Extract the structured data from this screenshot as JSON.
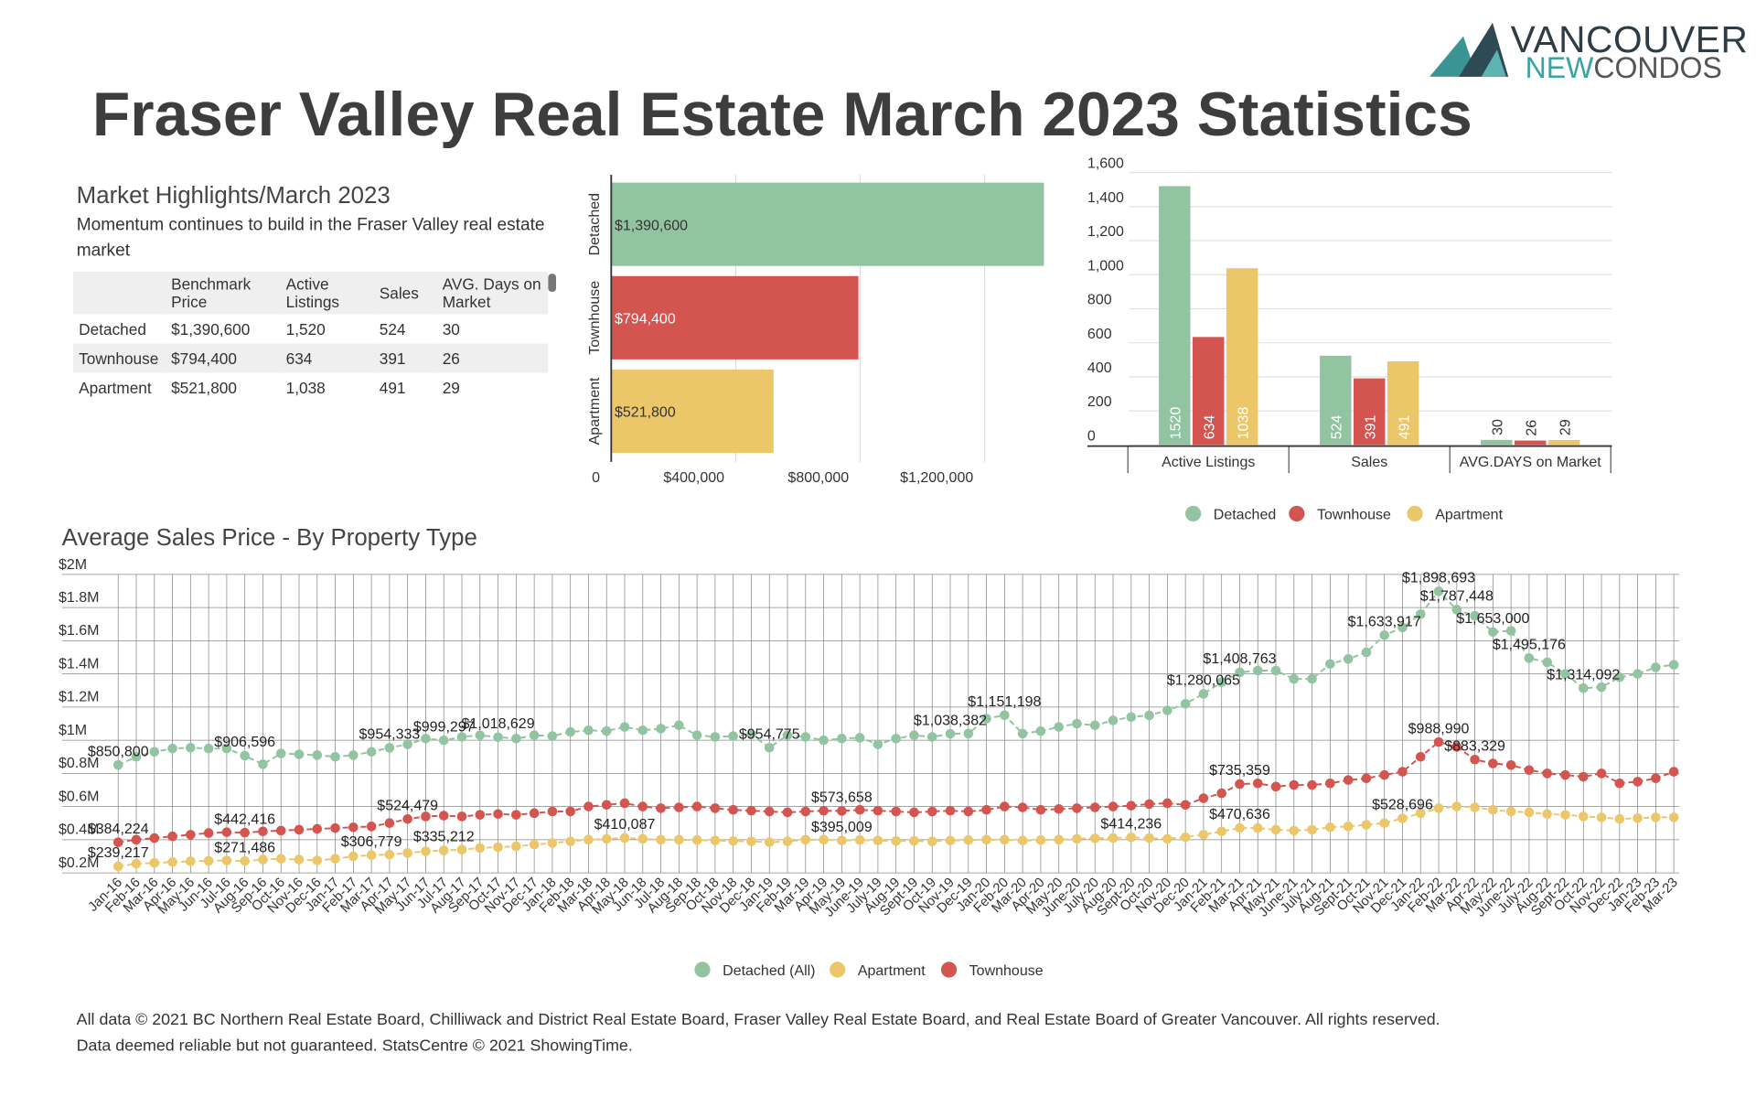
{
  "header": {
    "title": "Fraser Valley Real Estate March 2023 Statistics"
  },
  "logo": {
    "top": "VANCOUVER",
    "new": "NEW",
    "condos": "CONDOS"
  },
  "highlights": {
    "title": "Market Highlights/March 2023",
    "subtitle": "Momentum continues to build in the Fraser Valley real estate market",
    "table": {
      "columns": [
        "Benchmark Price",
        "Active Listings",
        "Sales",
        "AVG. Days on Market"
      ],
      "rows": [
        [
          "Detached",
          "$1,390,600",
          "1,520",
          "524",
          "30"
        ],
        [
          "Townhouse",
          "$794,400",
          "634",
          "391",
          "26"
        ],
        [
          "Apartment",
          "$521,800",
          "1,038",
          "491",
          "29"
        ]
      ]
    }
  },
  "chart_data": [
    {
      "type": "bar",
      "orientation": "horizontal",
      "categories": [
        "Detached",
        "Townhouse",
        "Apartment"
      ],
      "values": [
        1390600,
        794400,
        521800
      ],
      "value_labels": [
        "$1,390,600",
        "$794,400",
        "$521,800"
      ],
      "colors": [
        "#93c4a1",
        "#d4544f",
        "#ecc76a"
      ],
      "xlim": [
        0,
        1400000
      ],
      "xticks": [
        0,
        {
          "value": 400000,
          "label": "$400,000"
        },
        {
          "value": 800000,
          "label": "$800,000"
        },
        {
          "value": 1200000,
          "label": "$1,200,000"
        }
      ],
      "grid": true
    },
    {
      "type": "bar",
      "orientation": "vertical",
      "categories": [
        "Active Listings",
        "Sales",
        "AVG.DAYS on Market"
      ],
      "series": [
        {
          "name": "Detached",
          "color": "#93c4a1",
          "values": [
            1520,
            524,
            30
          ]
        },
        {
          "name": "Townhouse",
          "color": "#d4544f",
          "values": [
            634,
            391,
            26
          ]
        },
        {
          "name": "Apartment",
          "color": "#ecc76a",
          "values": [
            1038,
            491,
            29
          ]
        }
      ],
      "ylim": [
        0,
        1600
      ],
      "yticks": [
        0,
        200,
        400,
        600,
        800,
        {
          "value": 1000,
          "label": "1,000"
        },
        {
          "value": 1200,
          "label": "1,200"
        },
        {
          "value": 1400,
          "label": "1,400"
        },
        {
          "value": 1600,
          "label": "1,600"
        }
      ],
      "grid": true,
      "legend": "bottom"
    },
    {
      "type": "line",
      "title": "Average Sales Price - By Property Type",
      "categories": [
        "Jan-16",
        "Feb-16",
        "Mar-16",
        "Apr-16",
        "May-16",
        "Jun-16",
        "Jul-16",
        "Aug-16",
        "Sep-16",
        "Oct-16",
        "Nov-16",
        "Dec-16",
        "Jan-17",
        "Feb-17",
        "Mar-17",
        "Apr-17",
        "May-17",
        "Jun-17",
        "Jul-17",
        "Aug-17",
        "Sep-17",
        "Oct-17",
        "Nov-17",
        "Dec-17",
        "Jan-18",
        "Feb-18",
        "Mar-18",
        "Apr-18",
        "May-18",
        "Jun-18",
        "Jul-18",
        "Aug-18",
        "Sep-18",
        "Oct-18",
        "Nov-18",
        "Dec-18",
        "Jan-19",
        "Feb-19",
        "Mar-19",
        "Apr-19",
        "May-19",
        "June-19",
        "July-19",
        "Aug-19",
        "Sept-19",
        "Oct-19",
        "Nov-19",
        "Dec-19",
        "Jan-20",
        "Feb-20",
        "Mar-20",
        "Apr-20",
        "May-20",
        "June-20",
        "July-20",
        "Aug-20",
        "Sept-20",
        "Oct-20",
        "Nov-20",
        "Dec-20",
        "Jan-21",
        "Feb-21",
        "Mar-21",
        "Apr-21",
        "May-21",
        "June-21",
        "July-21",
        "Aug-21",
        "Sept-21",
        "Oct-21",
        "Nov-21",
        "Dec-21",
        "Jan-22",
        "Feb-22",
        "Mar-22",
        "Apr-22",
        "May-22",
        "June-22",
        "July-22",
        "Aug-22",
        "Sept-22",
        "Oct-22",
        "Nov-22",
        "Dec-22",
        "Jan-23",
        "Feb-23",
        "Mar-23"
      ],
      "series": [
        {
          "name": "Detached (All)",
          "color": "#93c4a1",
          "values": [
            850800,
            900000,
            930000,
            950000,
            955000,
            950000,
            950000,
            906596,
            855000,
            920000,
            915000,
            910000,
            900000,
            910000,
            930000,
            954333,
            975000,
            1010000,
            999297,
            1020000,
            1030000,
            1018629,
            1010000,
            1030000,
            1025000,
            1050000,
            1060000,
            1055000,
            1080000,
            1060000,
            1070000,
            1090000,
            1030000,
            1020000,
            1025000,
            1035000,
            954775,
            1030000,
            1020000,
            1000000,
            1010000,
            1015000,
            975000,
            1010000,
            1030000,
            1020000,
            1038382,
            1040000,
            1130000,
            1151198,
            1040000,
            1055000,
            1080000,
            1100000,
            1090000,
            1120000,
            1140000,
            1150000,
            1180000,
            1220000,
            1280065,
            1350000,
            1408763,
            1420000,
            1420000,
            1370000,
            1370000,
            1460000,
            1490000,
            1530000,
            1633917,
            1680000,
            1760000,
            1898693,
            1787448,
            1750000,
            1653000,
            1660000,
            1495176,
            1470000,
            1400000,
            1314092,
            1320000,
            1380000,
            1400000,
            1440000,
            1455000
          ],
          "value_labels": [
            "$850,800",
            null,
            null,
            null,
            null,
            null,
            null,
            "$906,596",
            null,
            null,
            null,
            null,
            null,
            null,
            null,
            "$954,333",
            null,
            null,
            "$999,297",
            null,
            null,
            "$1,018,629",
            null,
            null,
            null,
            null,
            null,
            null,
            null,
            null,
            null,
            null,
            null,
            null,
            null,
            null,
            "$954,775",
            null,
            null,
            null,
            null,
            null,
            null,
            null,
            null,
            null,
            "$1,038,382",
            null,
            null,
            "$1,151,198",
            null,
            null,
            null,
            null,
            null,
            null,
            null,
            null,
            null,
            null,
            "$1,280,065",
            null,
            "$1,408,763",
            null,
            null,
            null,
            null,
            null,
            null,
            null,
            "$1,633,917",
            null,
            null,
            "$1,898,693",
            "$1,787,448",
            null,
            "$1,653,000",
            null,
            "$1,495,176",
            null,
            null,
            "$1,314,092",
            null,
            null,
            null,
            null,
            null
          ]
        },
        {
          "name": "Apartment",
          "color": "#ecc76a",
          "values": [
            239217,
            255000,
            260000,
            265000,
            270000,
            272000,
            275000,
            271486,
            280000,
            285000,
            280000,
            275000,
            285000,
            300000,
            306779,
            310000,
            320000,
            330000,
            335212,
            340000,
            350000,
            355000,
            360000,
            370000,
            380000,
            390000,
            400000,
            405000,
            410087,
            405000,
            400000,
            400000,
            398000,
            395000,
            392000,
            390000,
            385000,
            390000,
            400000,
            400000,
            395009,
            398000,
            395000,
            392000,
            393000,
            390000,
            395000,
            398000,
            400000,
            400000,
            395000,
            398000,
            400000,
            405000,
            408000,
            410000,
            414236,
            410000,
            405000,
            415000,
            430000,
            450000,
            470636,
            470000,
            460000,
            455000,
            460000,
            475000,
            480000,
            490000,
            500000,
            528696,
            560000,
            590000,
            600000,
            595000,
            580000,
            570000,
            565000,
            555000,
            550000,
            540000,
            535000,
            525000,
            530000,
            535000,
            535000
          ],
          "value_labels": [
            "$239,217",
            null,
            null,
            null,
            null,
            null,
            null,
            "$271,486",
            null,
            null,
            null,
            null,
            null,
            null,
            "$306,779",
            null,
            null,
            null,
            "$335,212",
            null,
            null,
            null,
            null,
            null,
            null,
            null,
            null,
            null,
            "$410,087",
            null,
            null,
            null,
            null,
            null,
            null,
            null,
            null,
            null,
            null,
            null,
            "$395,009",
            null,
            null,
            null,
            null,
            null,
            null,
            null,
            null,
            null,
            null,
            null,
            null,
            null,
            null,
            null,
            "$414,236",
            null,
            null,
            null,
            null,
            null,
            "$470,636",
            null,
            null,
            null,
            null,
            null,
            null,
            null,
            null,
            "$528,696",
            null,
            null,
            null,
            null,
            null,
            null,
            null,
            null,
            null,
            null,
            null,
            null,
            null,
            null,
            null
          ]
        },
        {
          "name": "Townhouse",
          "color": "#d4544f",
          "values": [
            384224,
            400000,
            410000,
            420000,
            430000,
            440000,
            445000,
            442416,
            450000,
            455000,
            460000,
            465000,
            470000,
            475000,
            480000,
            500000,
            524479,
            540000,
            545000,
            540000,
            550000,
            555000,
            550000,
            560000,
            570000,
            570000,
            600000,
            610000,
            620000,
            600000,
            590000,
            595000,
            600000,
            590000,
            580000,
            575000,
            570000,
            565000,
            570000,
            575000,
            573658,
            580000,
            575000,
            570000,
            565000,
            570000,
            575000,
            570000,
            580000,
            600000,
            595000,
            580000,
            585000,
            590000,
            595000,
            600000,
            605000,
            615000,
            620000,
            610000,
            650000,
            680000,
            735359,
            740000,
            720000,
            730000,
            730000,
            740000,
            760000,
            770000,
            790000,
            810000,
            900000,
            988990,
            960000,
            883329,
            860000,
            850000,
            820000,
            800000,
            790000,
            780000,
            800000,
            740000,
            750000,
            770000,
            810000
          ],
          "value_labels": [
            "$384,224",
            null,
            null,
            null,
            null,
            null,
            null,
            "$442,416",
            null,
            null,
            null,
            null,
            null,
            null,
            null,
            null,
            "$524,479",
            null,
            null,
            null,
            null,
            null,
            null,
            null,
            null,
            null,
            null,
            null,
            null,
            null,
            null,
            null,
            null,
            null,
            null,
            null,
            null,
            null,
            null,
            null,
            "$573,658",
            null,
            null,
            null,
            null,
            null,
            null,
            null,
            null,
            null,
            null,
            null,
            null,
            null,
            null,
            null,
            null,
            null,
            null,
            null,
            null,
            null,
            "$735,359",
            null,
            null,
            null,
            null,
            null,
            null,
            null,
            null,
            null,
            null,
            "$988,990",
            null,
            "$883,329",
            null,
            null,
            null,
            null,
            null,
            null,
            null,
            null,
            null,
            null,
            null
          ]
        }
      ],
      "ylim": [
        200000,
        2000000
      ],
      "yticks": [
        {
          "value": 200000,
          "label": "$0.2M"
        },
        {
          "value": 400000,
          "label": "$0.4M"
        },
        {
          "value": 600000,
          "label": "$0.6M"
        },
        {
          "value": 800000,
          "label": "$0.8M"
        },
        {
          "value": 1000000,
          "label": "$1M"
        },
        {
          "value": 1200000,
          "label": "$1.2M"
        },
        {
          "value": 1400000,
          "label": "$1.4M"
        },
        {
          "value": 1600000,
          "label": "$1.6M"
        },
        {
          "value": 1800000,
          "label": "$1.8M"
        },
        {
          "value": 2000000,
          "label": "$2M"
        }
      ],
      "grid": true,
      "legend": "bottom"
    }
  ],
  "footer": [
    "All data © 2021 BC Northern Real Estate Board, Chilliwack and District Real Estate Board, Fraser Valley Real Estate Board, and Real Estate Board of Greater Vancouver. All rights reserved.",
    "Data deemed reliable but not guaranteed. StatsCentre © 2021 ShowingTime."
  ]
}
